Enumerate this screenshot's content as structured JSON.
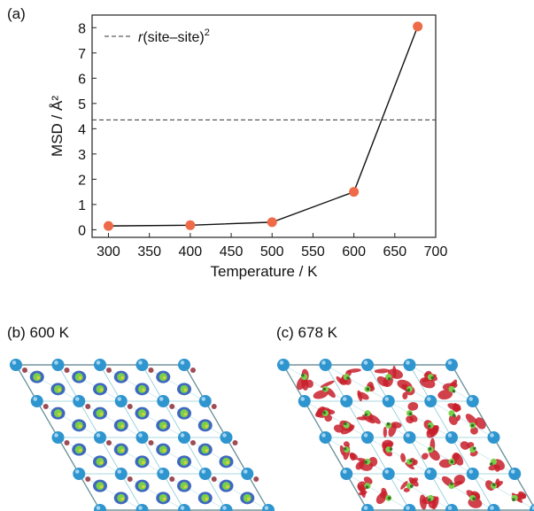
{
  "panels": {
    "a_label": "(a)",
    "b_label": "(b) 600 K",
    "c_label": "(c) 678 K"
  },
  "chart_data": {
    "type": "line",
    "xlabel": "Temperature / K",
    "ylabel": "MSD / Å²",
    "x": [
      300,
      400,
      500,
      600,
      678
    ],
    "series": [
      {
        "values": [
          0.15,
          0.18,
          0.3,
          1.5,
          8.05
        ],
        "color": "#ee6a48"
      }
    ],
    "reference_line": {
      "label_italic": "r",
      "label_rest": "(site–site)",
      "superscript": "2",
      "value": 4.35,
      "style": "dashed"
    },
    "xlim": [
      280,
      700
    ],
    "ylim": [
      -0.3,
      8.5
    ],
    "xticks": [
      300,
      350,
      400,
      450,
      500,
      550,
      600,
      650,
      700
    ],
    "yticks": [
      0,
      1,
      2,
      3,
      4,
      5,
      6,
      7,
      8
    ],
    "grid": false
  },
  "structure_images": {
    "b": {
      "description_color_atom": "#2f95cf",
      "density_color": "#2a58b8",
      "center_color": "#7ad04a",
      "disorder": 0
    },
    "c": {
      "description_color_atom": "#2f95cf",
      "density_color": "#c8202c",
      "center_color": "#7ad04a",
      "disorder": 1
    }
  }
}
